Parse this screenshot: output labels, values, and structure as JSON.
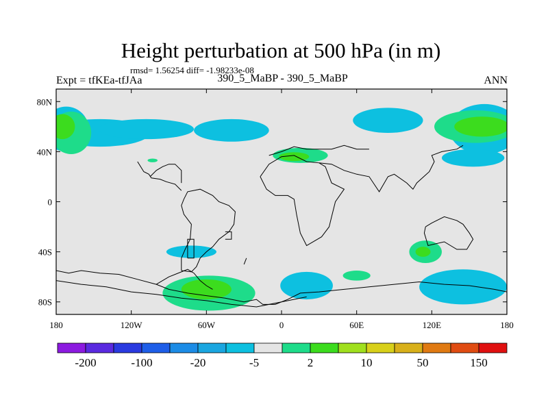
{
  "chart_data": {
    "type": "heatmap",
    "title": "Height perturbation at 500 hPa (in m)",
    "stats_text": "rmsd= 1.56254 diff= -1.98233e-08",
    "left_label": "Expt = tfKEa-tfJAa",
    "center_label": "390_5_MaBP - 390_5_MaBP",
    "right_label": "ANN",
    "x_ticks": [
      {
        "lon": -180,
        "label": "180"
      },
      {
        "lon": -120,
        "label": "120W"
      },
      {
        "lon": -60,
        "label": "60W"
      },
      {
        "lon": 0,
        "label": "0"
      },
      {
        "lon": 60,
        "label": "60E"
      },
      {
        "lon": 120,
        "label": "120E"
      },
      {
        "lon": 180,
        "label": "180"
      }
    ],
    "y_ticks": [
      {
        "lat": 80,
        "label": "80N"
      },
      {
        "lat": 40,
        "label": "40N"
      },
      {
        "lat": 0,
        "label": "0"
      },
      {
        "lat": -40,
        "label": "40S"
      },
      {
        "lat": -80,
        "label": "80S"
      }
    ],
    "xlim": [
      -180,
      180
    ],
    "ylim": [
      -90,
      90
    ],
    "background_color": "#e5e5e5",
    "colorbar": {
      "colors": [
        "#8c1ae0",
        "#5a2ae0",
        "#2a3ae0",
        "#1e5ee8",
        "#1c8ce6",
        "#1aa6e0",
        "#0dc0e0",
        "#e5e5e5",
        "#1edc8a",
        "#3cdc1e",
        "#a0e01e",
        "#d8d01a",
        "#d8b01a",
        "#e07a12",
        "#e04c12",
        "#e01010"
      ],
      "labels": [
        "-200",
        "-100",
        "-20",
        "-5",
        "2",
        "10",
        "50",
        "150"
      ]
    },
    "regions": [
      {
        "level": "-5",
        "color": "#0dc0e0",
        "lon": -145,
        "lat": 55,
        "rx": 40,
        "ry": 11
      },
      {
        "level": "-5",
        "color": "#0dc0e0",
        "lon": -108,
        "lat": 58,
        "rx": 38,
        "ry": 8
      },
      {
        "level": "-5",
        "color": "#0dc0e0",
        "lon": -40,
        "lat": 57,
        "rx": 30,
        "ry": 9
      },
      {
        "level": "-5",
        "color": "#0dc0e0",
        "lon": 85,
        "lat": 65,
        "rx": 28,
        "ry": 10
      },
      {
        "level": "-5",
        "color": "#0dc0e0",
        "lon": 162,
        "lat": 58,
        "rx": 28,
        "ry": 20
      },
      {
        "level": "-5",
        "color": "#0dc0e0",
        "lon": -172,
        "lat": 58,
        "rx": 18,
        "ry": 18
      },
      {
        "level": "-5",
        "color": "#0dc0e0",
        "lon": 153,
        "lat": 35,
        "rx": 25,
        "ry": 7
      },
      {
        "level": "-5",
        "color": "#0dc0e0",
        "lon": -72,
        "lat": -40,
        "rx": 20,
        "ry": 5
      },
      {
        "level": "-5",
        "color": "#0dc0e0",
        "lon": 20,
        "lat": -67,
        "rx": 21,
        "ry": 11
      },
      {
        "level": "-5",
        "color": "#0dc0e0",
        "lon": 145,
        "lat": -68,
        "rx": 35,
        "ry": 14
      },
      {
        "level": "2",
        "color": "#1edc8a",
        "lon": -168,
        "lat": 55,
        "rx": 16,
        "ry": 17
      },
      {
        "level": "2",
        "color": "#1edc8a",
        "lon": 155,
        "lat": 60,
        "rx": 33,
        "ry": 13
      },
      {
        "level": "2",
        "color": "#1edc8a",
        "lon": 15,
        "lat": 37,
        "rx": 22,
        "ry": 6
      },
      {
        "level": "2",
        "color": "#1edc8a",
        "lon": -58,
        "lat": -73,
        "rx": 37,
        "ry": 14
      },
      {
        "level": "2",
        "color": "#1edc8a",
        "lon": 115,
        "lat": -40,
        "rx": 13,
        "ry": 9
      },
      {
        "level": "2",
        "color": "#1edc8a",
        "lon": 60,
        "lat": -59,
        "rx": 11,
        "ry": 4
      },
      {
        "level": "2",
        "color": "#1edc8a",
        "lon": -103,
        "lat": 33,
        "rx": 4,
        "ry": 1.5
      },
      {
        "level": "10",
        "color": "#3cdc1e",
        "lon": -175,
        "lat": 60,
        "rx": 10,
        "ry": 10
      },
      {
        "level": "10",
        "color": "#3cdc1e",
        "lon": 160,
        "lat": 60,
        "rx": 22,
        "ry": 8
      },
      {
        "level": "10",
        "color": "#3cdc1e",
        "lon": 10,
        "lat": 36,
        "rx": 12,
        "ry": 3.5
      },
      {
        "level": "10",
        "color": "#3cdc1e",
        "lon": -60,
        "lat": -70,
        "rx": 20,
        "ry": 8
      },
      {
        "level": "10",
        "color": "#3cdc1e",
        "lon": 113,
        "lat": -40,
        "rx": 6,
        "ry": 4
      }
    ],
    "coastlines": [
      [
        [
          -180,
          -55
        ],
        [
          -170,
          -57
        ],
        [
          -160,
          -55
        ],
        [
          -145,
          -57
        ],
        [
          -130,
          -58
        ],
        [
          -115,
          -62
        ],
        [
          -100,
          -66
        ],
        [
          -90,
          -70
        ],
        [
          -75,
          -73
        ],
        [
          -60,
          -75
        ],
        [
          -45,
          -77
        ],
        [
          -30,
          -80
        ],
        [
          -20,
          -78
        ],
        [
          -15,
          -82
        ],
        [
          -5,
          -82
        ],
        [
          5,
          -78
        ],
        [
          15,
          -73
        ],
        [
          30,
          -72
        ],
        [
          50,
          -70
        ],
        [
          70,
          -68
        ],
        [
          90,
          -66
        ],
        [
          110,
          -64
        ],
        [
          130,
          -66
        ],
        [
          150,
          -67
        ],
        [
          170,
          -70
        ],
        [
          180,
          -72
        ]
      ],
      [
        [
          -180,
          -63
        ],
        [
          -160,
          -66
        ],
        [
          -140,
          -68
        ],
        [
          -120,
          -72
        ],
        [
          -100,
          -74
        ],
        [
          -80,
          -77
        ],
        [
          -60,
          -79
        ],
        [
          -40,
          -82
        ],
        [
          -20,
          -84
        ],
        [
          0,
          -80
        ],
        [
          20,
          -76
        ]
      ],
      [
        [
          -100,
          -66
        ],
        [
          -90,
          -60
        ],
        [
          -80,
          -56
        ],
        [
          -75,
          -54
        ],
        [
          -70,
          -57
        ],
        [
          -65,
          -63
        ],
        [
          -60,
          -67
        ],
        [
          -55,
          -70
        ]
      ],
      [
        [
          -80,
          -55
        ],
        [
          -80,
          -45
        ],
        [
          -77,
          -38
        ],
        [
          -73,
          -30
        ],
        [
          -72,
          -18
        ],
        [
          -78,
          -10
        ],
        [
          -80,
          -3
        ],
        [
          -78,
          2
        ],
        [
          -75,
          8
        ],
        [
          -65,
          10
        ],
        [
          -55,
          5
        ],
        [
          -50,
          0
        ],
        [
          -42,
          -3
        ],
        [
          -37,
          -8
        ],
        [
          -38,
          -18
        ],
        [
          -42,
          -24
        ],
        [
          -50,
          -30
        ],
        [
          -55,
          -36
        ],
        [
          -60,
          -40
        ],
        [
          -65,
          -45
        ],
        [
          -68,
          -52
        ],
        [
          -72,
          -56
        ],
        [
          -80,
          -55
        ]
      ],
      [
        [
          -17,
          20
        ],
        [
          -10,
          30
        ],
        [
          0,
          36
        ],
        [
          10,
          37
        ],
        [
          20,
          32
        ],
        [
          30,
          31
        ],
        [
          35,
          28
        ],
        [
          40,
          15
        ],
        [
          50,
          10
        ],
        [
          43,
          0
        ],
        [
          40,
          -12
        ],
        [
          38,
          -20
        ],
        [
          32,
          -28
        ],
        [
          20,
          -35
        ],
        [
          15,
          -25
        ],
        [
          12,
          -10
        ],
        [
          10,
          2
        ],
        [
          5,
          5
        ],
        [
          -5,
          5
        ],
        [
          -12,
          10
        ],
        [
          -17,
          20
        ]
      ],
      [
        [
          30,
          31
        ],
        [
          40,
          30
        ],
        [
          50,
          25
        ],
        [
          60,
          22
        ],
        [
          70,
          20
        ],
        [
          78,
          8
        ],
        [
          85,
          20
        ],
        [
          90,
          22
        ],
        [
          100,
          15
        ],
        [
          105,
          10
        ],
        [
          108,
          15
        ],
        [
          118,
          24
        ],
        [
          122,
          32
        ],
        [
          120,
          37
        ],
        [
          128,
          40
        ],
        [
          140,
          42
        ],
        [
          145,
          45
        ]
      ],
      [
        [
          115,
          -20
        ],
        [
          120,
          -17
        ],
        [
          130,
          -12
        ],
        [
          140,
          -15
        ],
        [
          145,
          -18
        ],
        [
          150,
          -25
        ],
        [
          153,
          -30
        ],
        [
          148,
          -38
        ],
        [
          140,
          -38
        ],
        [
          130,
          -32
        ],
        [
          117,
          -35
        ],
        [
          114,
          -25
        ],
        [
          115,
          -20
        ]
      ],
      [
        [
          -10,
          37
        ],
        [
          0,
          40
        ],
        [
          10,
          44
        ],
        [
          20,
          42
        ],
        [
          30,
          42
        ],
        [
          40,
          42
        ],
        [
          50,
          45
        ],
        [
          60,
          42
        ],
        [
          70,
          42
        ]
      ],
      [
        [
          -115,
          32
        ],
        [
          -110,
          24
        ],
        [
          -106,
          22
        ],
        [
          -104,
          19
        ],
        [
          -97,
          18
        ],
        [
          -92,
          16
        ],
        [
          -85,
          14
        ],
        [
          -80,
          9
        ]
      ],
      [
        [
          -30,
          -50
        ],
        [
          -28,
          -45
        ]
      ],
      [
        [
          -75,
          -45
        ],
        [
          -70,
          -45
        ],
        [
          -70,
          -30
        ],
        [
          -75,
          -30
        ],
        [
          -75,
          -45
        ]
      ],
      [
        [
          -45,
          -30
        ],
        [
          -40,
          -30
        ],
        [
          -40,
          -24
        ],
        [
          -45,
          -24
        ]
      ],
      [
        [
          -105,
          20
        ],
        [
          -100,
          25
        ],
        [
          -95,
          28
        ],
        [
          -90,
          30
        ],
        [
          -85,
          30
        ],
        [
          -80,
          25
        ],
        [
          -80,
          15
        ]
      ]
    ]
  }
}
